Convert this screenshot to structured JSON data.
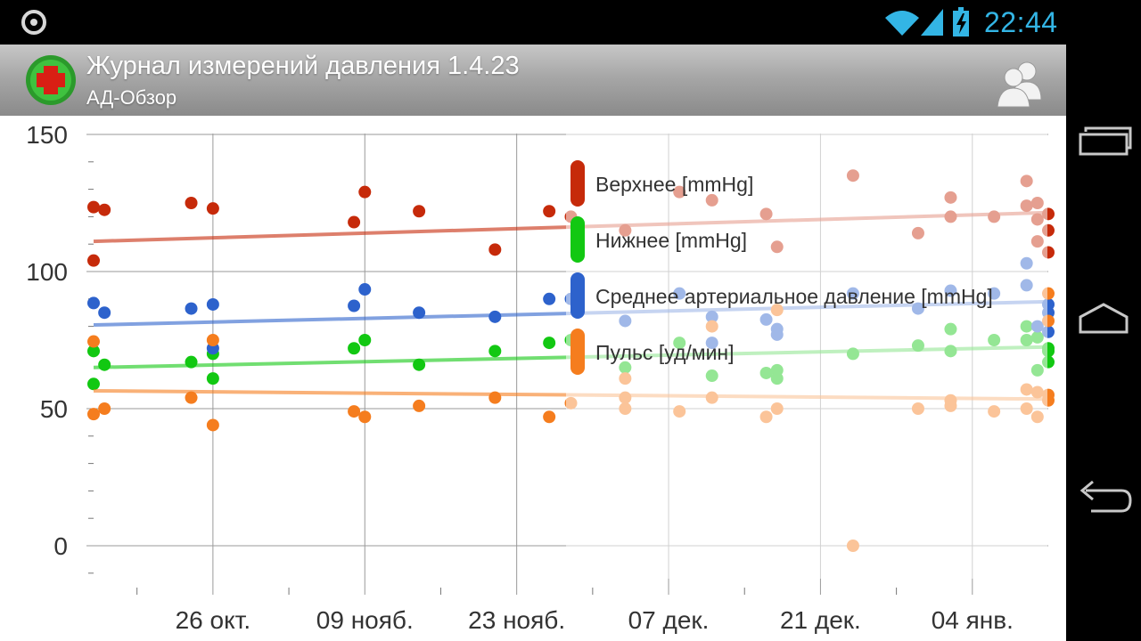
{
  "status_bar": {
    "time": "22:44",
    "icons": [
      "app-status-icon",
      "wifi-icon",
      "signal-icon",
      "battery-charging-icon"
    ]
  },
  "app": {
    "title": "Журнал измерений давления 1.4.23",
    "subtitle": "АД-Обзор",
    "logo_icon": "red-cross-icon",
    "action_icon": "people-icon"
  },
  "nav_buttons": [
    {
      "name": "recent-apps",
      "icon": "recent-apps-icon"
    },
    {
      "name": "home",
      "icon": "home-icon"
    },
    {
      "name": "back",
      "icon": "back-icon"
    }
  ],
  "chart_data": {
    "type": "scatter",
    "x_type": "date",
    "y_ticks": [
      0,
      50,
      100,
      150
    ],
    "ylim": [
      -13,
      152
    ],
    "xlim": [
      "2013-10-15",
      "2014-01-11"
    ],
    "x_ticks": [
      {
        "label": "26 окт.",
        "date": "2013-10-26"
      },
      {
        "label": "09 нояб.",
        "date": "2013-11-09"
      },
      {
        "label": "23 нояб.",
        "date": "2013-11-23"
      },
      {
        "label": "07 дек.",
        "date": "2013-12-07"
      },
      {
        "label": "21 дек.",
        "date": "2013-12-21"
      },
      {
        "label": "04 янв.",
        "date": "2014-01-04"
      }
    ],
    "grid": true,
    "legend_position": "top-center",
    "series": [
      {
        "name": "Верхнее [mmHg]",
        "color": "#c62a0a",
        "trend": {
          "start": 111,
          "end": 121.5
        },
        "points": [
          [
            "2013-10-15",
            104
          ],
          [
            "2013-10-15",
            123.5
          ],
          [
            "2013-10-16",
            122.5
          ],
          [
            "2013-10-24",
            125
          ],
          [
            "2013-10-26",
            123
          ],
          [
            "2013-11-08",
            118
          ],
          [
            "2013-11-09",
            129
          ],
          [
            "2013-11-14",
            122
          ],
          [
            "2013-11-21",
            108
          ],
          [
            "2013-11-26",
            122
          ],
          [
            "2013-11-28",
            120
          ],
          [
            "2013-12-03",
            115
          ],
          [
            "2013-12-08",
            129
          ],
          [
            "2013-12-11",
            126
          ],
          [
            "2013-12-16",
            121
          ],
          [
            "2013-12-17",
            109
          ],
          [
            "2013-12-24",
            135
          ],
          [
            "2013-12-30",
            114
          ],
          [
            "2014-01-02",
            127
          ],
          [
            "2014-01-02",
            120
          ],
          [
            "2014-01-06",
            120
          ],
          [
            "2014-01-09",
            133
          ],
          [
            "2014-01-09",
            124
          ],
          [
            "2014-01-10",
            125
          ],
          [
            "2014-01-10",
            119
          ],
          [
            "2014-01-10",
            111
          ],
          [
            "2014-01-11",
            115
          ],
          [
            "2014-01-11",
            121
          ],
          [
            "2014-01-11",
            107
          ]
        ]
      },
      {
        "name": "Нижнее [mmHg]",
        "color": "#12c812",
        "trend": {
          "start": 65,
          "end": 72.5
        },
        "points": [
          [
            "2013-10-15",
            59
          ],
          [
            "2013-10-15",
            71
          ],
          [
            "2013-10-16",
            66
          ],
          [
            "2013-10-24",
            67
          ],
          [
            "2013-10-26",
            70
          ],
          [
            "2013-10-26",
            61
          ],
          [
            "2013-11-08",
            72
          ],
          [
            "2013-11-09",
            75
          ],
          [
            "2013-11-14",
            66
          ],
          [
            "2013-11-21",
            71
          ],
          [
            "2013-11-26",
            74
          ],
          [
            "2013-11-28",
            75
          ],
          [
            "2013-12-03",
            65
          ],
          [
            "2013-12-08",
            74
          ],
          [
            "2013-12-11",
            62
          ],
          [
            "2013-12-16",
            63
          ],
          [
            "2013-12-17",
            64
          ],
          [
            "2013-12-17",
            61
          ],
          [
            "2013-12-24",
            70
          ],
          [
            "2013-12-30",
            73
          ],
          [
            "2014-01-02",
            79
          ],
          [
            "2014-01-02",
            71
          ],
          [
            "2014-01-06",
            75
          ],
          [
            "2014-01-09",
            80
          ],
          [
            "2014-01-09",
            75
          ],
          [
            "2014-01-10",
            64
          ],
          [
            "2014-01-10",
            76
          ],
          [
            "2014-01-11",
            67
          ],
          [
            "2014-01-11",
            71
          ],
          [
            "2014-01-11",
            72
          ]
        ]
      },
      {
        "name": "Среднее артериальное давление [mmHg]",
        "color": "#2d62cc",
        "trend": {
          "start": 80.5,
          "end": 89
        },
        "points": [
          [
            "2013-10-15",
            88.5
          ],
          [
            "2013-10-16",
            85
          ],
          [
            "2013-10-24",
            86.5
          ],
          [
            "2013-10-26",
            88
          ],
          [
            "2013-10-26",
            72
          ],
          [
            "2013-11-08",
            87.5
          ],
          [
            "2013-11-09",
            93.5
          ],
          [
            "2013-11-14",
            85
          ],
          [
            "2013-11-21",
            83.5
          ],
          [
            "2013-11-26",
            90
          ],
          [
            "2013-11-28",
            90
          ],
          [
            "2013-12-03",
            82
          ],
          [
            "2013-12-08",
            92
          ],
          [
            "2013-12-11",
            83.5
          ],
          [
            "2013-12-11",
            74
          ],
          [
            "2013-12-16",
            82.5
          ],
          [
            "2013-12-17",
            79
          ],
          [
            "2013-12-17",
            77
          ],
          [
            "2013-12-24",
            92
          ],
          [
            "2013-12-30",
            86.5
          ],
          [
            "2014-01-02",
            93
          ],
          [
            "2014-01-06",
            92
          ],
          [
            "2014-01-09",
            103
          ],
          [
            "2014-01-09",
            95
          ],
          [
            "2014-01-10",
            80
          ],
          [
            "2014-01-11",
            78
          ],
          [
            "2014-01-11",
            85
          ],
          [
            "2014-01-11",
            88
          ]
        ]
      },
      {
        "name": "Пульс [уд/мин]",
        "color": "#f57d1e",
        "trend": {
          "start": 56.5,
          "end": 53.5
        },
        "points": [
          [
            "2013-10-15",
            74.5
          ],
          [
            "2013-10-15",
            48
          ],
          [
            "2013-10-16",
            50
          ],
          [
            "2013-10-24",
            54
          ],
          [
            "2013-10-26",
            75
          ],
          [
            "2013-10-26",
            44
          ],
          [
            "2013-11-08",
            49
          ],
          [
            "2013-11-09",
            47
          ],
          [
            "2013-11-14",
            51
          ],
          [
            "2013-11-21",
            54
          ],
          [
            "2013-11-26",
            47
          ],
          [
            "2013-11-28",
            52
          ],
          [
            "2013-12-03",
            54
          ],
          [
            "2013-12-03",
            50
          ],
          [
            "2013-12-03",
            61
          ],
          [
            "2013-12-08",
            49
          ],
          [
            "2013-12-11",
            54
          ],
          [
            "2013-12-11",
            80
          ],
          [
            "2013-12-16",
            47
          ],
          [
            "2013-12-17",
            50
          ],
          [
            "2013-12-17",
            86
          ],
          [
            "2013-12-24",
            0
          ],
          [
            "2013-12-30",
            50
          ],
          [
            "2014-01-02",
            53
          ],
          [
            "2014-01-02",
            51
          ],
          [
            "2014-01-06",
            49
          ],
          [
            "2014-01-09",
            50
          ],
          [
            "2014-01-09",
            57
          ],
          [
            "2014-01-10",
            56
          ],
          [
            "2014-01-10",
            47
          ],
          [
            "2014-01-11",
            55
          ],
          [
            "2014-01-11",
            92
          ],
          [
            "2014-01-11",
            82
          ],
          [
            "2014-01-11",
            53
          ]
        ]
      }
    ]
  }
}
